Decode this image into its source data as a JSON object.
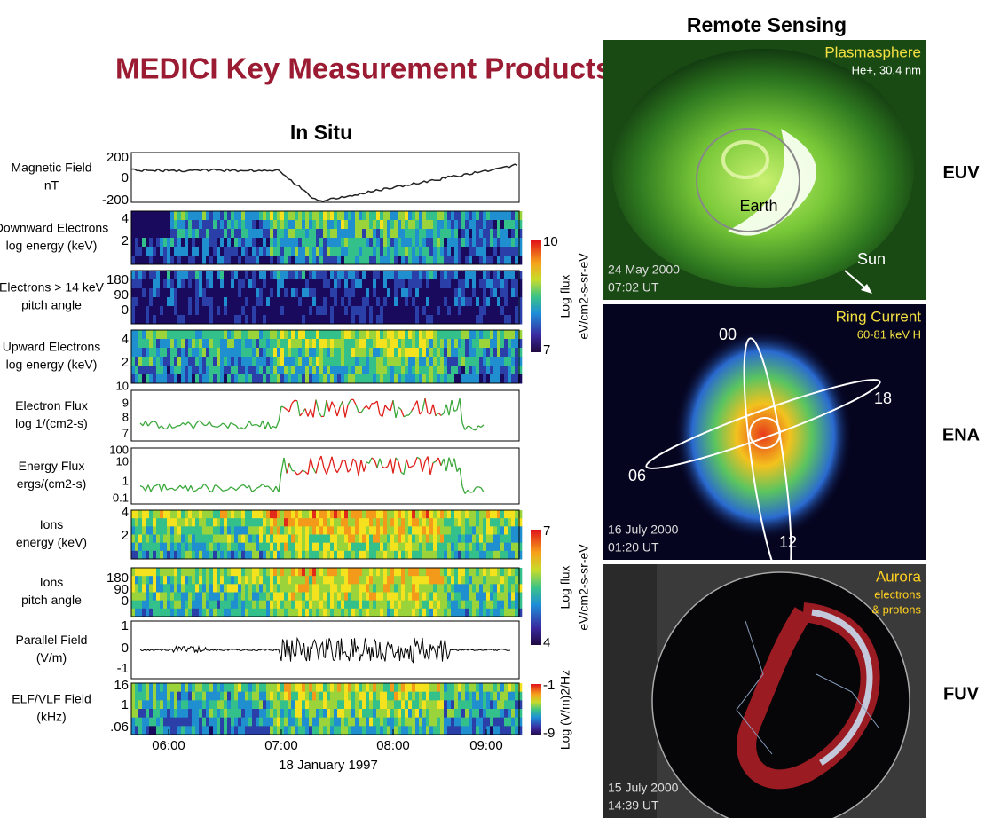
{
  "title": "MEDICI Key Measurement Products:",
  "in_situ": {
    "heading": "In Situ",
    "panels": [
      {
        "label": [
          "Magnetic Field",
          "nT"
        ],
        "ticks": [
          "200",
          "0",
          "-200"
        ]
      },
      {
        "label": [
          "Downward Electrons",
          "log energy (keV)"
        ],
        "ticks": [
          "4",
          "2"
        ]
      },
      {
        "label": [
          "Electrons  > 14 keV",
          "pitch angle"
        ],
        "ticks": [
          "180",
          "90",
          "0"
        ]
      },
      {
        "label": [
          "Upward Electrons",
          "log energy (keV)"
        ],
        "ticks": [
          "4",
          "2"
        ]
      },
      {
        "label": [
          "Electron Flux",
          "log 1/(cm2-s)"
        ],
        "ticks": [
          "10",
          "9",
          "8",
          "7"
        ]
      },
      {
        "label": [
          "Energy Flux",
          "ergs/(cm2-s)"
        ],
        "ticks": [
          "100",
          "10",
          "1",
          "0.1"
        ]
      },
      {
        "label": [
          "Ions",
          "energy (keV)"
        ],
        "ticks": [
          "4",
          "2"
        ]
      },
      {
        "label": [
          "Ions",
          "pitch angle"
        ],
        "ticks": [
          "180",
          "90",
          "0"
        ]
      },
      {
        "label": [
          "Parallel Field",
          "(V/m)"
        ],
        "ticks": [
          "1",
          "0",
          "-1"
        ]
      },
      {
        "label": [
          "ELF/VLF Field",
          "(kHz)"
        ],
        "ticks": [
          "16",
          "1",
          ".06"
        ]
      }
    ],
    "x_ticks": [
      "06:00",
      "07:00",
      "08:00",
      "09:00"
    ],
    "x_label": "18 January 1997",
    "colorbars": [
      {
        "max": "10",
        "min": "7",
        "label": [
          "Log flux",
          "eV/cm2-s-sr-eV"
        ]
      },
      {
        "max": "7",
        "min": "4",
        "label": [
          "Log flux",
          "eV/cm2-s-sr-eV"
        ]
      },
      {
        "max": "-1",
        "min": "-9",
        "label": [
          "Log (V/m)2/Hz"
        ]
      }
    ]
  },
  "remote_sensing": {
    "heading": "Remote Sensing",
    "panels": [
      {
        "tag": "EUV",
        "title": "Plasmasphere",
        "subtitle": [
          "He+, 30.4 nm"
        ],
        "date": "24 May 2000",
        "time": "07:02 UT",
        "labels": [
          "Earth",
          "Sun"
        ]
      },
      {
        "tag": "ENA",
        "title": "Ring Current",
        "subtitle": [
          "60-81 keV H"
        ],
        "date": "16 July 2000",
        "time": "01:20 UT",
        "labels": [
          "00",
          "18",
          "06",
          "12"
        ]
      },
      {
        "tag": "FUV",
        "title": "Aurora",
        "subtitle": [
          "electrons",
          "& protons"
        ],
        "date": "15 July 2000",
        "time": "14:39 UT",
        "labels": []
      }
    ]
  }
}
